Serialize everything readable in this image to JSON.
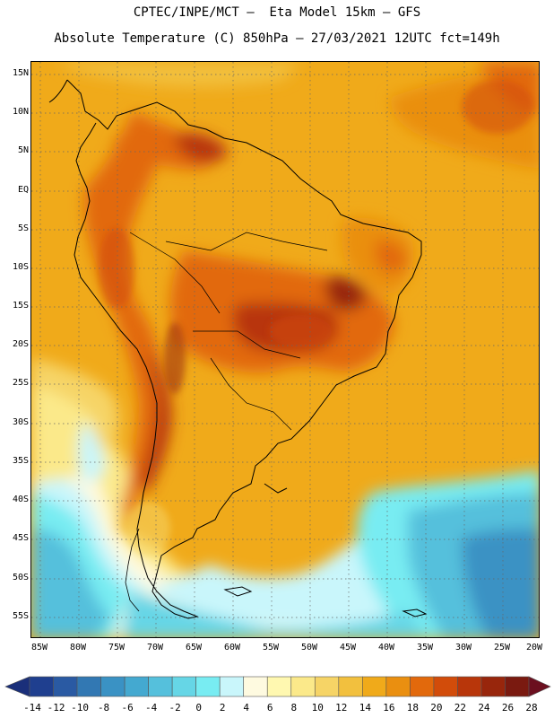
{
  "title_line1": "CPTEC/INPE/MCT —  Eta Model 15km — GFS",
  "title_line2": "Absolute Temperature (C) 850hPa — 27/03/2021 12UTC fct=149h",
  "lat_labels": [
    "15N",
    "10N",
    "5N",
    "EQ",
    "5S",
    "10S",
    "15S",
    "20S",
    "25S",
    "30S",
    "35S",
    "40S",
    "45S",
    "50S",
    "55S"
  ],
  "lon_labels": [
    "85W",
    "80W",
    "75W",
    "70W",
    "65W",
    "60W",
    "55W",
    "50W",
    "45W",
    "40W",
    "35W",
    "30W",
    "25W",
    "20W"
  ],
  "colorbar": {
    "labels": [
      "-14",
      "-12",
      "-10",
      "-8",
      "-6",
      "-4",
      "-2",
      "0",
      "2",
      "4",
      "6",
      "8",
      "10",
      "12",
      "14",
      "16",
      "18",
      "20",
      "22",
      "24",
      "26",
      "28"
    ],
    "colors": [
      "#1f3f8f",
      "#2a5aa3",
      "#3278b3",
      "#3a92c4",
      "#44a9d0",
      "#55c0dc",
      "#66d6e6",
      "#78ecf2",
      "#c9f6fb",
      "#fefae0",
      "#fff8b0",
      "#fbe98a",
      "#f6d466",
      "#f2c03e",
      "#f0aa1a",
      "#ea8f10",
      "#e2690c",
      "#d24c0a",
      "#b8360a",
      "#98260c",
      "#7a1a10"
    ],
    "left_arrow_color": "#1a2f7a",
    "right_arrow_color": "#6b0f1f"
  }
}
